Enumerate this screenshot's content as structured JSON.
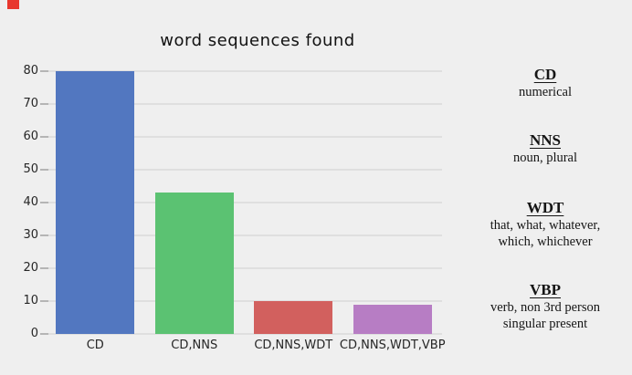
{
  "chart_data": {
    "type": "bar",
    "title": "word sequences found",
    "categories": [
      "CD",
      "CD,NNS",
      "CD,NNS,WDT",
      "CD,NNS,WDT,VBP"
    ],
    "values": [
      80,
      43,
      10,
      9
    ],
    "bar_colors": [
      "#5277c0",
      "#5bc272",
      "#d2605e",
      "#b77dc4"
    ],
    "xlabel": "",
    "ylabel": "",
    "ylim": [
      0,
      84
    ],
    "yticks": [
      0,
      10,
      20,
      30,
      40,
      50,
      60,
      70,
      80
    ],
    "grid": true,
    "gridline_color": "#dfdfdf",
    "background_color": "#efefef",
    "legend_position": "right"
  },
  "legend": {
    "items": [
      {
        "term": "CD",
        "lines": [
          "numerical"
        ]
      },
      {
        "term": "NNS",
        "lines": [
          "noun, plural"
        ]
      },
      {
        "term": "WDT",
        "lines": [
          "that, what, whatever,",
          "which, whichever"
        ]
      },
      {
        "term": "VBP",
        "lines": [
          "verb, non 3rd person",
          "singular present"
        ]
      }
    ]
  },
  "corner_mark_color": "#e8372d"
}
